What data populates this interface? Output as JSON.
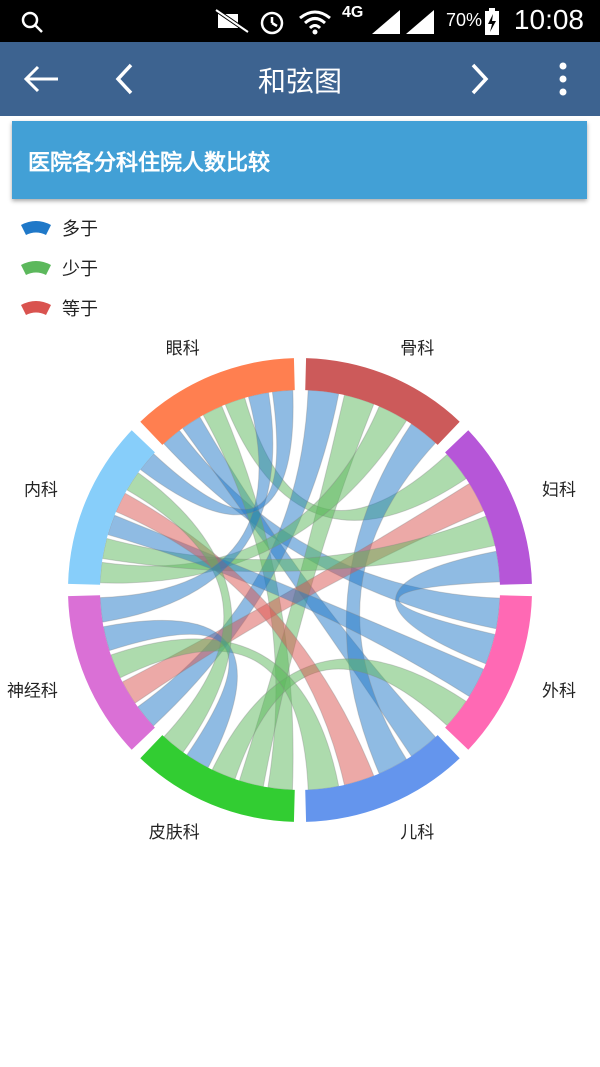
{
  "status_bar": {
    "time": "10:08",
    "battery_percent": "70%",
    "network": "4G",
    "icons": [
      "search-icon",
      "mute-icon",
      "alarm-icon",
      "wifi-icon",
      "signal-4g-icon",
      "signal-2g-icon",
      "battery-icon"
    ]
  },
  "app_bar": {
    "title": "和弦图",
    "icons": [
      "back-arrow-icon",
      "chevron-left-icon",
      "chevron-right-icon",
      "more-vert-icon"
    ],
    "color": "#3d6390"
  },
  "card": {
    "title": "医院各分科住院人数比较",
    "color": "#42a0d6"
  },
  "legend": [
    {
      "label": "多于",
      "color": "#1f78c8"
    },
    {
      "label": "少于",
      "color": "#5cb85c"
    },
    {
      "label": "等于",
      "color": "#d9534f"
    }
  ],
  "chart_data": {
    "type": "chord",
    "groups": [
      {
        "name": "骨科",
        "color": "#cc5a5a"
      },
      {
        "name": "妇科",
        "color": "#b656d8"
      },
      {
        "name": "外科",
        "color": "#ff69b4"
      },
      {
        "name": "儿科",
        "color": "#6495ed"
      },
      {
        "name": "皮肤科",
        "color": "#32cd32"
      },
      {
        "name": "神经科",
        "color": "#da70d6"
      },
      {
        "name": "内科",
        "color": "#87cefa"
      },
      {
        "name": "眼科",
        "color": "#ff7f50"
      }
    ],
    "chords": [
      {
        "source": "眼科",
        "target": "外科",
        "relation": "多于"
      },
      {
        "source": "眼科",
        "target": "儿科",
        "relation": "多于"
      },
      {
        "source": "眼科",
        "target": "皮肤科",
        "relation": "少于"
      },
      {
        "source": "眼科",
        "target": "妇科",
        "relation": "少于"
      },
      {
        "source": "骨科",
        "target": "神经科",
        "relation": "多于"
      },
      {
        "source": "骨科",
        "target": "皮肤科",
        "relation": "少于"
      },
      {
        "source": "骨科",
        "target": "内科",
        "relation": "少于"
      },
      {
        "source": "骨科",
        "target": "儿科",
        "relation": "多于"
      },
      {
        "source": "妇科",
        "target": "神经科",
        "relation": "等于"
      },
      {
        "source": "妇科",
        "target": "内科",
        "relation": "少于"
      },
      {
        "source": "妇科",
        "target": "外科",
        "relation": "多于"
      },
      {
        "source": "外科",
        "target": "内科",
        "relation": "多于"
      },
      {
        "source": "外科",
        "target": "皮肤科",
        "relation": "少于"
      },
      {
        "source": "儿科",
        "target": "内科",
        "relation": "等于"
      },
      {
        "source": "儿科",
        "target": "神经科",
        "relation": "少于"
      },
      {
        "source": "皮肤科",
        "target": "神经科",
        "relation": "多于"
      },
      {
        "source": "皮肤科",
        "target": "内科",
        "relation": "少于"
      },
      {
        "source": "神经科",
        "target": "眼科",
        "relation": "多于"
      },
      {
        "source": "内科",
        "target": "眼科",
        "relation": "多于"
      }
    ]
  }
}
